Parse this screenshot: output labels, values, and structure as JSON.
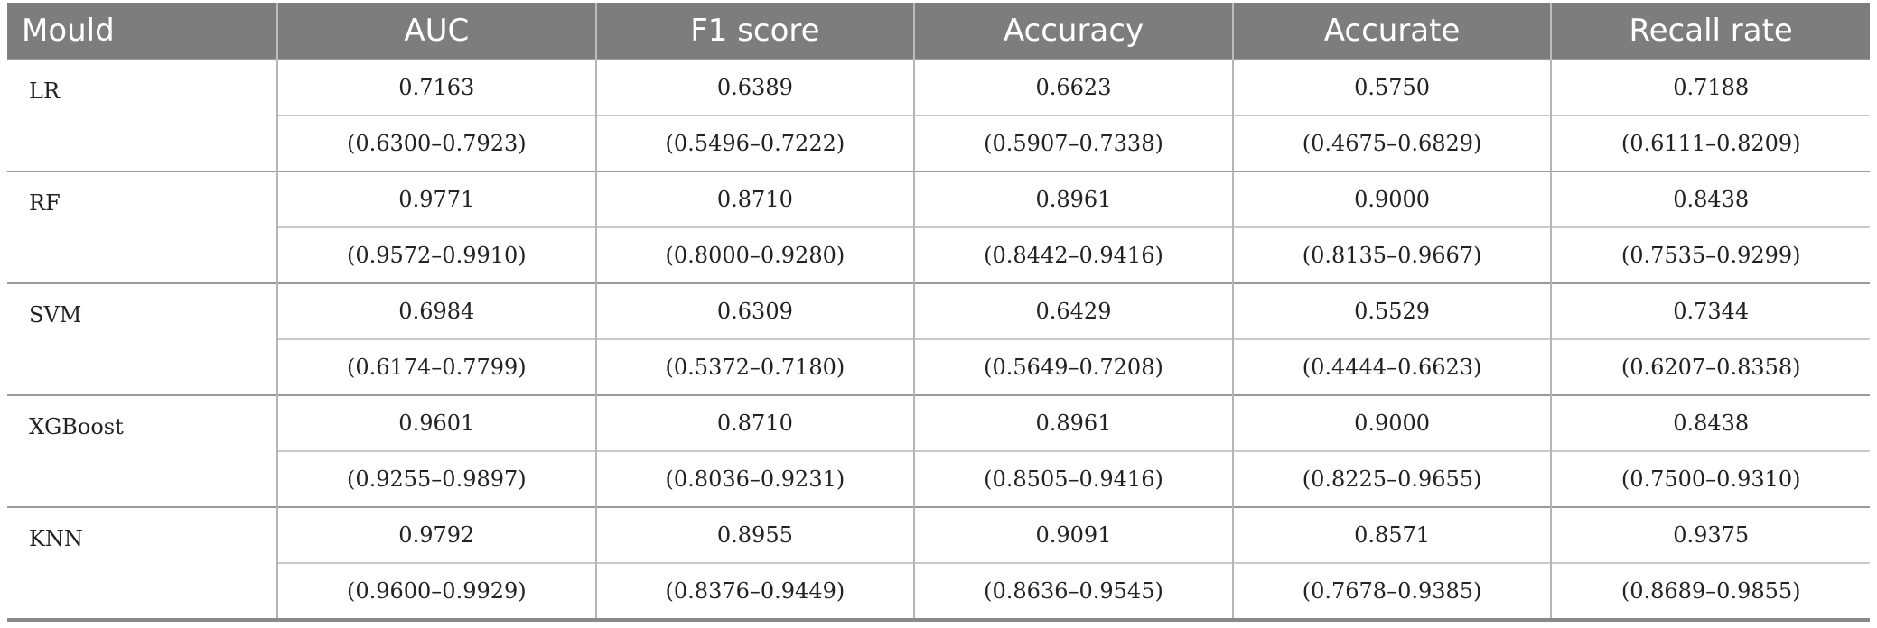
{
  "table": {
    "headers": [
      "Mould",
      "AUC",
      "F1 score",
      "Accuracy",
      "Accurate",
      "Recall rate"
    ],
    "rows": [
      {
        "model": "LR",
        "values": [
          "0.7163",
          "0.6389",
          "0.6623",
          "0.5750",
          "0.7188"
        ],
        "ci": [
          "(0.6300–0.7923)",
          "(0.5496–0.7222)",
          "(0.5907–0.7338)",
          "(0.4675–0.6829)",
          "(0.6111–0.8209)"
        ]
      },
      {
        "model": "RF",
        "values": [
          "0.9771",
          "0.8710",
          "0.8961",
          "0.9000",
          "0.8438"
        ],
        "ci": [
          "(0.9572–0.9910)",
          "(0.8000–0.9280)",
          "(0.8442–0.9416)",
          "(0.8135–0.9667)",
          "(0.7535–0.9299)"
        ]
      },
      {
        "model": "SVM",
        "values": [
          "0.6984",
          "0.6309",
          "0.6429",
          "0.5529",
          "0.7344"
        ],
        "ci": [
          "(0.6174–0.7799)",
          "(0.5372–0.7180)",
          "(0.5649–0.7208)",
          "(0.4444–0.6623)",
          "(0.6207–0.8358)"
        ]
      },
      {
        "model": "XGBoost",
        "values": [
          "0.9601",
          "0.8710",
          "0.8961",
          "0.9000",
          "0.8438"
        ],
        "ci": [
          "(0.9255–0.9897)",
          "(0.8036–0.9231)",
          "(0.8505–0.9416)",
          "(0.8225–0.9655)",
          "(0.7500–0.9310)"
        ]
      },
      {
        "model": "KNN",
        "values": [
          "0.9792",
          "0.8955",
          "0.9091",
          "0.8571",
          "0.9375"
        ],
        "ci": [
          "(0.9600–0.9929)",
          "(0.8376–0.9449)",
          "(0.8636–0.9545)",
          "(0.7678–0.9385)",
          "(0.8689–0.9855)"
        ]
      }
    ]
  }
}
